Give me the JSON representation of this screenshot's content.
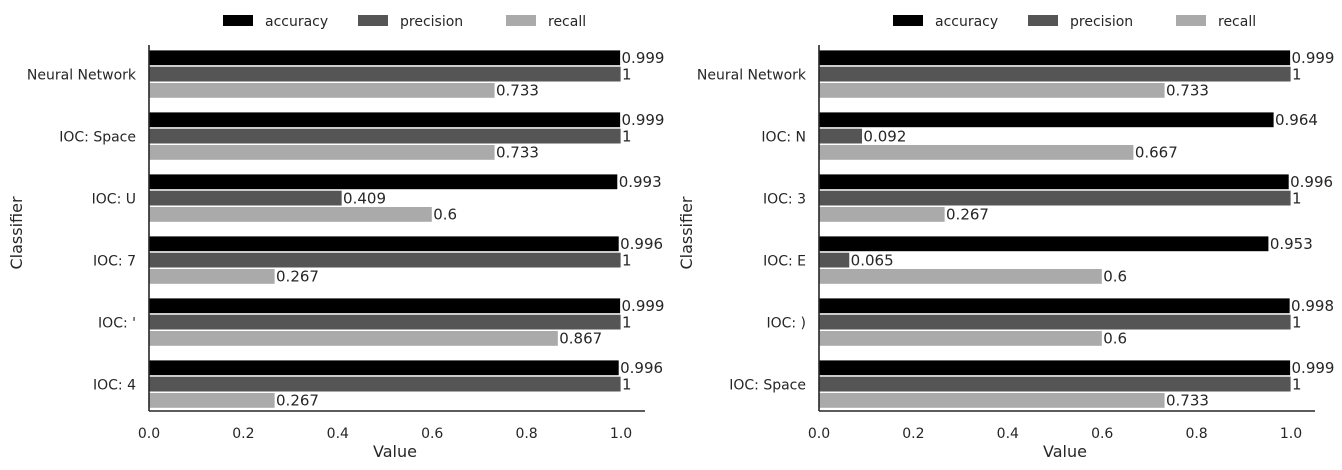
{
  "chart_data": [
    {
      "type": "bar",
      "orientation": "horizontal",
      "categories": [
        "Neural Network",
        "IOC: Space",
        "IOC: U",
        "IOC: 7",
        "IOC: '",
        "IOC: 4"
      ],
      "series": [
        {
          "name": "accuracy",
          "color": "#000000",
          "values": [
            0.999,
            0.999,
            0.993,
            0.996,
            0.999,
            0.996
          ],
          "labels": [
            "0.999",
            "0.999",
            "0.993",
            "0.996",
            "0.999",
            "0.996"
          ]
        },
        {
          "name": "precision",
          "color": "#555555",
          "values": [
            1,
            1,
            0.409,
            1,
            1,
            1
          ],
          "labels": [
            "1",
            "1",
            "0.409",
            "1",
            "1",
            "1"
          ]
        },
        {
          "name": "recall",
          "color": "#aaaaaa",
          "values": [
            0.733,
            0.733,
            0.6,
            0.267,
            0.867,
            0.267
          ],
          "labels": [
            "0.733",
            "0.733",
            "0.6",
            "0.267",
            "0.867",
            "0.267"
          ]
        }
      ],
      "xlabel": "Value",
      "ylabel": "Classifier",
      "xlim": [
        0,
        1.05
      ],
      "xticks": [
        "0.0",
        "0.2",
        "0.4",
        "0.6",
        "0.8",
        "1.0"
      ],
      "grid": false,
      "legend": "top-center"
    },
    {
      "type": "bar",
      "orientation": "horizontal",
      "categories": [
        "Neural Network",
        "IOC: N",
        "IOC: 3",
        "IOC: E",
        "IOC: )",
        "IOC: Space"
      ],
      "series": [
        {
          "name": "accuracy",
          "color": "#000000",
          "values": [
            0.999,
            0.964,
            0.996,
            0.953,
            0.998,
            0.999
          ],
          "labels": [
            "0.999",
            "0.964",
            "0.996",
            "0.953",
            "0.998",
            "0.999"
          ]
        },
        {
          "name": "precision",
          "color": "#555555",
          "values": [
            1,
            0.092,
            1,
            0.065,
            1,
            1
          ],
          "labels": [
            "1",
            "0.092",
            "1",
            "0.065",
            "1",
            "1"
          ]
        },
        {
          "name": "recall",
          "color": "#aaaaaa",
          "values": [
            0.733,
            0.667,
            0.267,
            0.6,
            0.6,
            0.733
          ],
          "labels": [
            "0.733",
            "0.667",
            "0.267",
            "0.6",
            "0.6",
            "0.733"
          ]
        }
      ],
      "xlabel": "Value",
      "ylabel": "Classifier",
      "xlim": [
        0,
        1.05
      ],
      "xticks": [
        "0.0",
        "0.2",
        "0.4",
        "0.6",
        "0.8",
        "1.0"
      ],
      "grid": false,
      "legend": "top-center"
    }
  ]
}
